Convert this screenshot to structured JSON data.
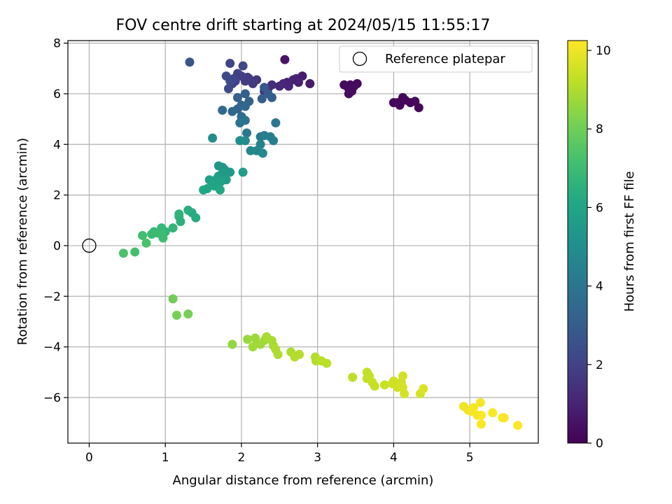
{
  "chart_data": {
    "type": "scatter",
    "title": "FOV centre drift starting at 2024/05/15 11:55:17",
    "xlabel": "Angular distance from reference (arcmin)",
    "ylabel": "Rotation from reference (arcmin)",
    "xlim": [
      -0.28,
      5.9
    ],
    "ylim": [
      -7.8,
      8.1
    ],
    "xticks": [
      0,
      1,
      2,
      3,
      4,
      5
    ],
    "yticks": [
      -6,
      -4,
      -2,
      0,
      2,
      4,
      6,
      8
    ],
    "grid": true,
    "legend": {
      "position": "top-right",
      "entries": [
        "Reference platepar"
      ]
    },
    "reference_point": {
      "x": 0,
      "y": 0
    },
    "colorbar": {
      "label": "Hours from first FF file",
      "colormap": "viridis",
      "range": [
        0,
        10.25
      ],
      "ticks": [
        0,
        2,
        4,
        6,
        8,
        10
      ]
    },
    "series": [
      {
        "points": [
          [
            3.35,
            6.35,
            0.3
          ],
          [
            3.4,
            6.25,
            0.3
          ],
          [
            3.43,
            6.35,
            0.3
          ],
          [
            3.45,
            6.1,
            0.3
          ],
          [
            3.41,
            6.0,
            0.35
          ],
          [
            3.48,
            6.3,
            0.3
          ],
          [
            3.52,
            6.4,
            0.3
          ],
          [
            4.0,
            5.65,
            0.2
          ],
          [
            4.05,
            5.65,
            0.2
          ],
          [
            4.08,
            5.55,
            0.2
          ],
          [
            4.12,
            5.85,
            0.2
          ],
          [
            4.15,
            5.75,
            0.2
          ],
          [
            4.22,
            5.65,
            0.2
          ],
          [
            4.28,
            5.7,
            0.2
          ],
          [
            4.33,
            5.45,
            0.2
          ],
          [
            2.57,
            7.35,
            0.6
          ],
          [
            2.9,
            6.4,
            0.8
          ],
          [
            2.8,
            6.7,
            0.8
          ],
          [
            2.75,
            6.45,
            0.9
          ],
          [
            2.72,
            6.6,
            1.0
          ],
          [
            2.68,
            6.55,
            1.0
          ],
          [
            2.6,
            6.45,
            1.0
          ],
          [
            2.62,
            6.3,
            1.1
          ],
          [
            2.55,
            6.4,
            1.1
          ],
          [
            2.5,
            6.3,
            1.2
          ],
          [
            2.4,
            6.35,
            1.3
          ],
          [
            2.35,
            6.2,
            1.4
          ],
          [
            2.3,
            6.1,
            1.5
          ],
          [
            2.2,
            6.55,
            1.6
          ],
          [
            2.15,
            6.4,
            1.7
          ],
          [
            2.1,
            6.6,
            1.7
          ],
          [
            2.05,
            6.5,
            1.8
          ],
          [
            2.08,
            6.65,
            1.8
          ],
          [
            2.0,
            6.7,
            1.9
          ],
          [
            1.95,
            6.8,
            1.9
          ],
          [
            1.92,
            6.5,
            2.0
          ],
          [
            1.88,
            6.4,
            2.0
          ],
          [
            1.9,
            6.6,
            2.1
          ],
          [
            1.85,
            7.2,
            2.1
          ],
          [
            2.02,
            7.1,
            2.2
          ],
          [
            1.83,
            6.2,
            2.2
          ],
          [
            1.8,
            6.7,
            2.3
          ],
          [
            1.85,
            6.5,
            2.3
          ],
          [
            1.32,
            7.25,
            2.7
          ],
          [
            2.3,
            6.25,
            2.8
          ],
          [
            2.35,
            6.0,
            2.9
          ],
          [
            2.27,
            5.8,
            3.0
          ],
          [
            2.4,
            5.85,
            3.0
          ],
          [
            2.05,
            6.0,
            3.1
          ],
          [
            1.95,
            5.85,
            3.1
          ],
          [
            2.1,
            5.7,
            3.2
          ],
          [
            2.0,
            5.55,
            3.3
          ],
          [
            1.95,
            5.4,
            3.3
          ],
          [
            1.88,
            5.3,
            3.4
          ],
          [
            1.75,
            5.35,
            3.5
          ],
          [
            2.05,
            5.5,
            3.5
          ],
          [
            2.0,
            5.1,
            3.6
          ],
          [
            2.05,
            4.95,
            3.8
          ],
          [
            1.98,
            4.85,
            3.9
          ],
          [
            2.45,
            4.85,
            4.0
          ],
          [
            2.07,
            4.45,
            4.1
          ],
          [
            2.25,
            4.3,
            4.2
          ],
          [
            2.3,
            4.35,
            4.3
          ],
          [
            2.38,
            4.3,
            4.4
          ],
          [
            2.42,
            4.15,
            4.4
          ],
          [
            2.25,
            4.0,
            4.5
          ],
          [
            2.2,
            3.75,
            4.6
          ],
          [
            2.12,
            3.75,
            4.7
          ],
          [
            2.28,
            3.65,
            4.8
          ],
          [
            1.98,
            4.15,
            4.9
          ],
          [
            2.05,
            4.15,
            4.9
          ],
          [
            1.62,
            4.25,
            5.0
          ],
          [
            1.7,
            3.15,
            5.3
          ],
          [
            1.75,
            3.1,
            5.4
          ],
          [
            1.78,
            3.0,
            5.4
          ],
          [
            1.75,
            2.85,
            5.5
          ],
          [
            1.85,
            2.9,
            5.5
          ],
          [
            2.02,
            2.9,
            5.6
          ],
          [
            1.7,
            2.75,
            5.6
          ],
          [
            1.8,
            2.6,
            5.7
          ],
          [
            1.68,
            2.65,
            5.7
          ],
          [
            1.65,
            2.55,
            5.8
          ],
          [
            1.58,
            2.6,
            5.8
          ],
          [
            1.62,
            2.4,
            5.9
          ],
          [
            1.72,
            2.5,
            5.9
          ],
          [
            1.65,
            2.35,
            6.0
          ],
          [
            1.55,
            2.25,
            6.0
          ],
          [
            1.5,
            2.2,
            6.1
          ],
          [
            1.72,
            2.2,
            6.1
          ],
          [
            1.4,
            1.1,
            6.3
          ],
          [
            1.35,
            1.3,
            6.3
          ],
          [
            1.3,
            1.4,
            6.4
          ],
          [
            1.18,
            1.15,
            6.5
          ],
          [
            1.2,
            0.95,
            6.5
          ],
          [
            1.18,
            1.25,
            6.6
          ],
          [
            1.1,
            0.7,
            6.7
          ],
          [
            1.0,
            0.55,
            6.7
          ],
          [
            0.95,
            0.7,
            6.8
          ],
          [
            0.9,
            0.5,
            6.8
          ],
          [
            0.85,
            0.55,
            6.9
          ],
          [
            0.82,
            0.45,
            6.9
          ],
          [
            0.95,
            0.45,
            7.0
          ],
          [
            0.97,
            0.3,
            7.0
          ],
          [
            0.7,
            0.4,
            7.1
          ],
          [
            0.6,
            -0.25,
            7.2
          ],
          [
            0.45,
            -0.3,
            7.3
          ],
          [
            0.75,
            0.1,
            7.3
          ],
          [
            1.1,
            -2.1,
            8.0
          ],
          [
            1.15,
            -2.75,
            8.1
          ],
          [
            1.3,
            -2.7,
            8.1
          ],
          [
            1.88,
            -3.9,
            8.6
          ],
          [
            2.08,
            -3.7,
            8.7
          ],
          [
            2.18,
            -3.65,
            8.7
          ],
          [
            2.2,
            -3.85,
            8.7
          ],
          [
            2.25,
            -3.9,
            8.8
          ],
          [
            2.15,
            -4.0,
            8.8
          ],
          [
            2.3,
            -3.75,
            8.8
          ],
          [
            2.33,
            -3.6,
            8.9
          ],
          [
            2.4,
            -3.75,
            8.9
          ],
          [
            2.42,
            -3.95,
            8.9
          ],
          [
            2.45,
            -4.1,
            9.0
          ],
          [
            2.48,
            -4.3,
            9.0
          ],
          [
            2.65,
            -4.2,
            9.0
          ],
          [
            2.7,
            -4.4,
            9.1
          ],
          [
            2.76,
            -4.3,
            9.1
          ],
          [
            2.97,
            -4.4,
            9.1
          ],
          [
            2.98,
            -4.55,
            9.1
          ],
          [
            3.05,
            -4.55,
            9.2
          ],
          [
            3.12,
            -4.65,
            9.2
          ],
          [
            3.46,
            -5.2,
            9.2
          ],
          [
            3.65,
            -5.0,
            9.3
          ],
          [
            3.65,
            -5.25,
            9.3
          ],
          [
            3.68,
            -5.15,
            9.3
          ],
          [
            3.72,
            -5.4,
            9.4
          ],
          [
            3.75,
            -5.55,
            9.4
          ],
          [
            3.88,
            -5.5,
            9.4
          ],
          [
            3.98,
            -5.45,
            9.5
          ],
          [
            4.0,
            -5.35,
            9.5
          ],
          [
            4.05,
            -5.6,
            9.5
          ],
          [
            4.1,
            -5.4,
            9.5
          ],
          [
            4.12,
            -5.15,
            9.6
          ],
          [
            4.12,
            -5.6,
            9.6
          ],
          [
            4.14,
            -5.85,
            9.6
          ],
          [
            4.35,
            -5.85,
            9.6
          ],
          [
            4.39,
            -5.65,
            9.7
          ],
          [
            4.92,
            -6.35,
            10.0
          ],
          [
            4.98,
            -6.5,
            10.0
          ],
          [
            5.02,
            -6.55,
            10.1
          ],
          [
            5.05,
            -6.4,
            10.1
          ],
          [
            5.1,
            -6.7,
            10.1
          ],
          [
            5.14,
            -6.2,
            10.1
          ],
          [
            5.15,
            -6.7,
            10.2
          ],
          [
            5.15,
            -7.05,
            10.2
          ],
          [
            5.3,
            -6.6,
            10.2
          ],
          [
            5.43,
            -6.8,
            10.2
          ],
          [
            5.45,
            -6.8,
            10.2
          ],
          [
            5.63,
            -7.1,
            10.25
          ]
        ]
      }
    ]
  }
}
